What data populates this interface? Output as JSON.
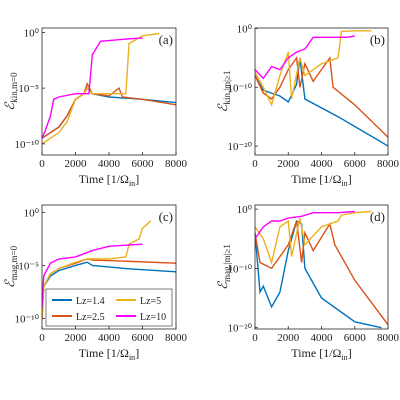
{
  "chart_data": [
    {
      "type": "line",
      "ylog": true,
      "label": "(a)",
      "ylabel": {
        "symbol": "ℰ",
        "subscript": "kin,m=0"
      },
      "xlabel": {
        "text": "Time [1/Ω",
        "subscript": "in",
        "end": "]"
      },
      "xlim": [
        0,
        8000
      ],
      "xticks": [
        0,
        2000,
        4000,
        6000,
        8000
      ],
      "ylim": [
        1e-11,
        2.5
      ],
      "yticks": [
        {
          "value": 1e-10,
          "label": "10⁻¹⁰"
        },
        {
          "value": 1e-05,
          "label": "10⁻⁵"
        },
        {
          "value": 1,
          "label": "10⁰"
        }
      ],
      "series": [
        {
          "color": "#0072BD",
          "x": [
            0,
            500,
            1000,
            1500,
            2000,
            2500,
            2700,
            3000,
            4000,
            6000,
            8000
          ],
          "values": [
            3.2e-10,
            1e-09,
            3.2e-09,
            3.2e-08,
            1e-06,
            3.2e-06,
            1e-05,
            3.2e-06,
            1.6e-06,
            1e-06,
            5e-07
          ]
        },
        {
          "color": "#D95319",
          "x": [
            0,
            500,
            1000,
            1500,
            2000,
            2500,
            2700,
            3000,
            4000,
            4600,
            4800,
            6000,
            8000
          ],
          "values": [
            3.2e-10,
            1e-09,
            3.2e-09,
            3.2e-08,
            1e-06,
            3.2e-06,
            2.5e-05,
            3.2e-06,
            2e-06,
            1e-05,
            1.6e-06,
            1e-06,
            3.2e-07
          ]
        },
        {
          "color": "#EDB120",
          "x": [
            0,
            500,
            1000,
            1500,
            2000,
            2500,
            2700,
            3000,
            4000,
            5000,
            5200,
            6000,
            7000
          ],
          "values": [
            1e-10,
            3.2e-10,
            1e-09,
            1e-08,
            1e-06,
            3.2e-06,
            1e-05,
            3.2e-06,
            3.2e-06,
            3.2e-06,
            0.1,
            0.5,
            0.8
          ]
        },
        {
          "color": "#FF00FF",
          "x": [
            0,
            200,
            500,
            700,
            1000,
            2000,
            2800,
            3000,
            3500,
            5000,
            6000
          ],
          "values": [
            3.2e-10,
            1.6e-09,
            3.2e-08,
            1e-06,
            1.6e-06,
            3.2e-06,
            3.2e-06,
            0.01,
            0.16,
            0.25,
            0.32
          ]
        }
      ]
    },
    {
      "type": "line",
      "ylog": true,
      "label": "(b)",
      "ylabel": {
        "symbol": "ℰ",
        "subscript": "kin,|m|≥1"
      },
      "xlabel": {
        "text": "Time [1/Ω",
        "subscript": "in",
        "end": "]"
      },
      "xlim": [
        0,
        8000
      ],
      "xticks": [
        0,
        2000,
        4000,
        6000,
        8000
      ],
      "ylim": [
        3e-22,
        1.2
      ],
      "yticks": [
        {
          "value": 1e-20,
          "label": "10⁻²⁰"
        },
        {
          "value": 1e-10,
          "label": "10⁻¹⁰"
        },
        {
          "value": 1,
          "label": "10⁰"
        }
      ],
      "series": [
        {
          "color": "#0072BD",
          "x": [
            0,
            500,
            1000,
            1500,
            2000,
            2500,
            2700,
            3000,
            5000,
            8000
          ],
          "values": [
            1e-08,
            3.2e-11,
            1e-11,
            3.2e-12,
            3.2e-13,
            3.2e-10,
            1e-05,
            1e-12,
            1e-15,
            1e-20
          ]
        },
        {
          "color": "#D95319",
          "x": [
            0,
            500,
            1000,
            1500,
            2000,
            2500,
            2700,
            3000,
            3500,
            4500,
            4700,
            6000,
            8000
          ],
          "values": [
            1e-08,
            1e-11,
            1e-12,
            1e-10,
            1e-07,
            1e-05,
            1e-10,
            1e-06,
            1e-09,
            1e-05,
            1e-10,
            1e-13,
            3.2e-19
          ]
        },
        {
          "color": "#EDB120",
          "x": [
            0,
            500,
            1000,
            1500,
            2000,
            2200,
            2700,
            3000,
            4000,
            5000,
            5200,
            6000,
            7000
          ],
          "values": [
            3.2e-08,
            1e-10,
            1e-13,
            1e-08,
            0.0001,
            1e-12,
            1e-05,
            1e-08,
            1e-06,
            1e-05,
            0.32,
            0.4,
            0.4
          ]
        },
        {
          "color": "#FF00FF",
          "x": [
            0,
            500,
            1000,
            1500,
            2000,
            2500,
            3000,
            3500,
            4500,
            5500,
            6000
          ],
          "values": [
            1e-07,
            3.2e-09,
            3.2e-07,
            1e-07,
            1e-05,
            0.0001,
            0.00032,
            0.032,
            0.032,
            0.032,
            0.05
          ]
        }
      ]
    },
    {
      "type": "line",
      "ylog": true,
      "label": "(c)",
      "ylabel": {
        "symbol": "ℰ",
        "subscript": "mag,m=0"
      },
      "xlabel": {
        "text": "Time [1/Ω",
        "subscript": "in",
        "end": "]"
      },
      "xlim": [
        0,
        8000
      ],
      "xticks": [
        0,
        2000,
        4000,
        6000,
        8000
      ],
      "ylim": [
        1e-11,
        5
      ],
      "yticks": [
        {
          "value": 1e-10,
          "label": "10⁻¹⁰"
        },
        {
          "value": 1e-05,
          "label": "10⁻⁵"
        },
        {
          "value": 1,
          "label": "10⁰"
        }
      ],
      "series": [
        {
          "name": "Lz=1.4",
          "color": "#0072BD",
          "x": [
            0,
            100,
            500,
            1000,
            2000,
            2700,
            3000,
            5000,
            8000
          ],
          "values": [
            1e-10,
            1e-07,
            1e-06,
            3.2e-06,
            1e-05,
            2e-05,
            1e-05,
            5e-06,
            2.5e-06
          ]
        },
        {
          "name": "Lz=2.5",
          "color": "#D95319",
          "x": [
            0,
            100,
            500,
            1000,
            2000,
            2700,
            3000,
            5000,
            8000
          ],
          "values": [
            1e-10,
            1e-07,
            1.6e-06,
            5e-06,
            1.6e-05,
            4e-05,
            3.2e-05,
            2.5e-05,
            1.6e-05
          ]
        },
        {
          "name": "Lz=5",
          "color": "#EDB120",
          "x": [
            0,
            100,
            500,
            1000,
            2000,
            2700,
            4000,
            5000,
            5200,
            5800,
            6000,
            6500
          ],
          "values": [
            1e-10,
            1e-07,
            1.6e-06,
            5e-06,
            2e-05,
            4e-05,
            4e-05,
            6.3e-05,
            0.001,
            0.0032,
            0.032,
            0.16
          ]
        },
        {
          "name": "Lz=10",
          "color": "#FF00FF",
          "x": [
            0,
            100,
            500,
            1000,
            2000,
            3000,
            4000,
            5000,
            6000
          ],
          "values": [
            1e-09,
            1e-06,
            1.6e-05,
            4e-05,
            6.3e-05,
            0.00025,
            0.00063,
            0.0008,
            0.001
          ]
        }
      ]
    },
    {
      "type": "line",
      "ylog": true,
      "label": "(d)",
      "ylabel": {
        "symbol": "ℰ",
        "subscript": "mag,|m|≥1"
      },
      "xlabel": {
        "text": "Time [1/Ω",
        "subscript": "in",
        "end": "]"
      },
      "xlim": [
        0,
        8000
      ],
      "xticks": [
        0,
        2000,
        4000,
        6000,
        8000
      ],
      "ylim": [
        6e-21,
        5
      ],
      "yticks": [
        {
          "value": 1e-20,
          "label": "10⁻²⁰"
        },
        {
          "value": 1e-10,
          "label": "10⁻¹⁰"
        },
        {
          "value": 1,
          "label": "10⁰"
        }
      ],
      "series": [
        {
          "color": "#0072BD",
          "x": [
            0,
            300,
            500,
            1000,
            1500,
            2000,
            2500,
            2800,
            3000,
            4000,
            6000,
            7600
          ],
          "values": [
            0.0001,
            1e-14,
            1e-13,
            3.2e-17,
            1e-14,
            1e-07,
            0.01,
            0.0032,
            1e-10,
            1e-15,
            1e-19,
            1e-20
          ]
        },
        {
          "color": "#D95319",
          "x": [
            0,
            300,
            1000,
            2000,
            2500,
            2800,
            3000,
            3500,
            4500,
            4800,
            6000,
            8000
          ],
          "values": [
            0.0001,
            1e-09,
            1e-10,
            1e-06,
            0.01,
            1e-09,
            0.0001,
            1e-07,
            0.0032,
            1e-06,
            1e-12,
            3.2e-20
          ]
        },
        {
          "color": "#EDB120",
          "x": [
            0,
            500,
            1000,
            1500,
            2000,
            2200,
            2700,
            3000,
            4000,
            5000,
            5200,
            6000,
            7000
          ],
          "values": [
            0.001,
            1e-05,
            1e-09,
            0.001,
            0.01,
            1e-08,
            0.032,
            1e-06,
            0.001,
            0.01,
            0.1,
            0.25,
            0.4
          ]
        },
        {
          "color": "#FF00FF",
          "x": [
            0,
            500,
            1000,
            1500,
            2000,
            2800,
            3500,
            5000,
            6000
          ],
          "values": [
            1e-05,
            0.001,
            0.01,
            0.01,
            0.032,
            0.063,
            0.25,
            0.25,
            0.4
          ]
        }
      ]
    }
  ]
}
